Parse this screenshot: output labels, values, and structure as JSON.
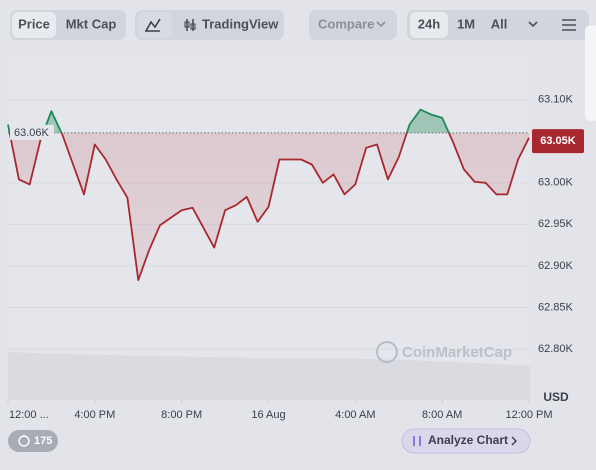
{
  "toolbar": {
    "tabs": [
      "Price",
      "Mkt Cap"
    ],
    "tradingview": "TradingView",
    "compare": "Compare",
    "ranges": [
      "24h",
      "1M",
      "All"
    ]
  },
  "chart_data": {
    "type": "line",
    "x": [
      0,
      0.5,
      1,
      1.5,
      2,
      2.5,
      3,
      3.5,
      4,
      4.5,
      5,
      5.5,
      6,
      6.5,
      7,
      7.5,
      8,
      8.5,
      9,
      9.5,
      10,
      10.5,
      11,
      11.5,
      12,
      12.5,
      13,
      13.5,
      14,
      14.5,
      15,
      15.5,
      16,
      16.5,
      17,
      17.5,
      18,
      18.5,
      19,
      19.5,
      20,
      20.5,
      21,
      21.5,
      22,
      22.5,
      23,
      23.5,
      24
    ],
    "values": [
      63070,
      63004,
      62998,
      63052,
      63086,
      63058,
      63022,
      62986,
      63046,
      63028,
      63004,
      62982,
      62883,
      62919,
      62949,
      62958,
      62967,
      62970,
      62946,
      62922,
      62967,
      62973,
      62983,
      62953,
      62971,
      63028,
      63028,
      63028,
      63022,
      63000,
      63010,
      62986,
      62998,
      63042,
      63046,
      63004,
      63031,
      63070,
      63088,
      63082,
      63078,
      63049,
      63016,
      63001,
      63000,
      62986,
      62986,
      63028,
      63054
    ],
    "up_color": "#1e8a5a",
    "down_color": "#a8282f",
    "baseline": {
      "value": 63060,
      "label": "63.06K"
    },
    "current": {
      "value": 63050,
      "label": "63.05K"
    },
    "xlim": [
      0,
      24
    ],
    "xticks": [
      {
        "value": 0,
        "label": "12:00 ..."
      },
      {
        "value": 4,
        "label": "4:00 PM"
      },
      {
        "value": 8,
        "label": "8:00 PM"
      },
      {
        "value": 12,
        "label": "16 Aug"
      },
      {
        "value": 16,
        "label": "4:00 AM"
      },
      {
        "value": 20,
        "label": "8:00 AM"
      },
      {
        "value": 24,
        "label": "12:00 PM"
      }
    ],
    "ylim": [
      62740,
      63150
    ],
    "yticks": [
      {
        "value": 62800,
        "label": "62.80K"
      },
      {
        "value": 62850,
        "label": "62.85K"
      },
      {
        "value": 62900,
        "label": "62.90K"
      },
      {
        "value": 62950,
        "label": "62.95K"
      },
      {
        "value": 63000,
        "label": "63.00K"
      },
      {
        "value": 63100,
        "label": "63.10K"
      }
    ],
    "y_unit": "USD",
    "watermark": "CoinMarketCap",
    "grid": true
  },
  "footer": {
    "badge": "175",
    "button": "Analyze Chart"
  }
}
